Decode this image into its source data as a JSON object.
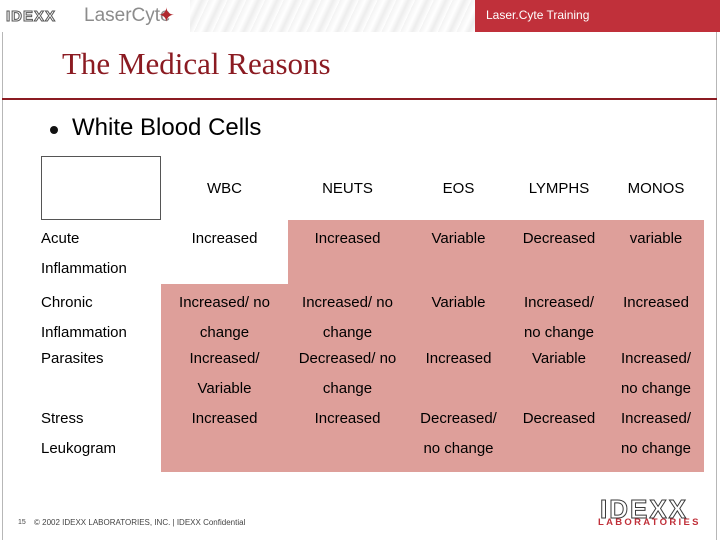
{
  "header": {
    "logo_primary": "IDEXX",
    "logo_product": "LaserCyte",
    "training_label": "Laser.Cyte Training"
  },
  "slide": {
    "title": "The Medical Reasons",
    "bullet": "White Blood Cells"
  },
  "table": {
    "columns": [
      "WBC",
      "NEUTS",
      "EOS",
      "LYMPHS",
      "MONOS"
    ],
    "rows": [
      {
        "label": [
          "Acute",
          "Inflammation"
        ],
        "cells": [
          [
            "Increased"
          ],
          [
            "Increased"
          ],
          [
            "Variable"
          ],
          [
            "Decreased"
          ],
          [
            "variable"
          ]
        ]
      },
      {
        "label": [
          "Chronic",
          "Inflammation"
        ],
        "cells": [
          [
            "Increased/ no",
            "change"
          ],
          [
            "Increased/ no",
            "change"
          ],
          [
            "Variable"
          ],
          [
            "Increased/",
            "no change"
          ],
          [
            "Increased"
          ]
        ]
      },
      {
        "label": [
          "Parasites"
        ],
        "cells": [
          [
            "Increased/",
            "Variable"
          ],
          [
            "Decreased/ no",
            "change"
          ],
          [
            "Increased"
          ],
          [
            "Variable"
          ],
          [
            "Increased/",
            "no change"
          ]
        ]
      },
      {
        "label": [
          "Stress",
          "Leukogram"
        ],
        "cells": [
          [
            "Increased"
          ],
          [
            "Increased"
          ],
          [
            "Decreased/",
            "no change"
          ],
          [
            "Decreased"
          ],
          [
            "Increased/",
            "no change"
          ]
        ]
      }
    ]
  },
  "footer": {
    "page_number": "15",
    "copyright": "© 2002 IDEXX LABORATORIES, INC. | IDEXX Confidential",
    "logo_top": "IDEXX",
    "logo_bottom": "LABORATORIES"
  },
  "colors": {
    "brand_red": "#c0303a",
    "title_red": "#8b1b22",
    "cell_shade": "#de9f9a"
  }
}
